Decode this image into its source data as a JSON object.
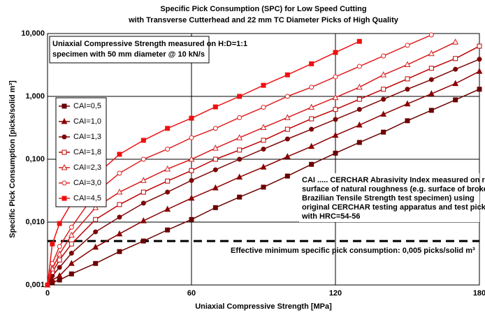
{
  "chart_data": {
    "type": "line",
    "title": "Specific Pick Consumption (SPC) for Low Speed Cutting",
    "subtitle": "with Transverse Cutterhead and 22 mm TC Diameter Picks of High Quality",
    "x_label": "Uniaxial Compressive Strength [MPa]",
    "y_label": "Specific Pick Consumption [picks/solid m³]",
    "y_scale": "log",
    "grid": true,
    "xlim": [
      0,
      180
    ],
    "xticks": [
      0,
      60,
      120,
      180
    ],
    "ylim": [
      0.001,
      10
    ],
    "yticks": [
      {
        "value": 0.001,
        "label": "0,001"
      },
      {
        "value": 0.01,
        "label": "0,010"
      },
      {
        "value": 0.1,
        "label": "0,100"
      },
      {
        "value": 1,
        "label": "1,000"
      },
      {
        "value": 10,
        "label": "10,000"
      }
    ],
    "x": [
      0,
      2,
      5,
      10,
      20,
      30,
      40,
      50,
      60,
      70,
      80,
      90,
      100,
      110,
      120,
      130,
      140,
      150,
      160,
      170,
      180
    ],
    "series": [
      {
        "name": "CAI=0,5",
        "color": "#6b0000",
        "marker": "square",
        "filled": true,
        "values": [
          0.001,
          0.0011,
          0.0012,
          0.0015,
          0.0022,
          0.0034,
          0.005,
          0.0075,
          0.011,
          0.017,
          0.025,
          0.036,
          0.054,
          0.083,
          0.125,
          0.185,
          0.27,
          0.41,
          0.6,
          0.88,
          1.3
        ]
      },
      {
        "name": "CAI=1,0",
        "color": "#8a0000",
        "marker": "triangle",
        "filled": true,
        "values": [
          0.001,
          0.0012,
          0.0014,
          0.0022,
          0.004,
          0.0065,
          0.0105,
          0.016,
          0.024,
          0.035,
          0.052,
          0.075,
          0.11,
          0.16,
          0.24,
          0.35,
          0.52,
          0.76,
          1.1,
          1.6,
          2.5
        ]
      },
      {
        "name": "CAI=1,3",
        "color": "#7d0606",
        "marker": "circle",
        "filled": true,
        "values": [
          0.001,
          0.0014,
          0.0019,
          0.0032,
          0.007,
          0.012,
          0.02,
          0.03,
          0.046,
          0.068,
          0.1,
          0.145,
          0.21,
          0.3,
          0.43,
          0.62,
          0.9,
          1.3,
          1.85,
          2.7,
          3.9
        ]
      },
      {
        "name": "CAI=1,8",
        "color": "#c00000",
        "marker": "square",
        "filled": false,
        "values": [
          0.001,
          0.0016,
          0.0025,
          0.0045,
          0.011,
          0.019,
          0.03,
          0.045,
          0.066,
          0.1,
          0.14,
          0.2,
          0.3,
          0.44,
          0.62,
          0.9,
          1.3,
          1.9,
          2.8,
          4.0,
          6.3
        ]
      },
      {
        "name": "CAI=2,3",
        "color": "#d81c1c",
        "marker": "triangle",
        "filled": false,
        "values": [
          0.001,
          0.0018,
          0.0031,
          0.0062,
          0.017,
          0.03,
          0.046,
          0.07,
          0.1,
          0.15,
          0.22,
          0.32,
          0.46,
          0.67,
          0.96,
          1.4,
          2.2,
          3.2,
          4.8,
          7.3,
          null
        ]
      },
      {
        "name": "CAI=3,0",
        "color": "#e02020",
        "marker": "circle",
        "filled": false,
        "values": [
          0.001,
          0.0022,
          0.0041,
          0.0083,
          0.029,
          0.06,
          0.1,
          0.145,
          0.22,
          0.31,
          0.46,
          0.67,
          1.0,
          1.4,
          2.05,
          3.0,
          4.4,
          6.5,
          9.5,
          null,
          null
        ]
      },
      {
        "name": "CAI=4,5",
        "color": "#ee1111",
        "marker": "square",
        "filled": true,
        "values": [
          0.001,
          0.0045,
          0.0095,
          0.02,
          0.055,
          0.12,
          0.2,
          0.31,
          0.45,
          0.68,
          1.0,
          1.5,
          2.2,
          3.3,
          5.0,
          7.5,
          null,
          null,
          null,
          null,
          null
        ]
      }
    ],
    "min_line": 0.005,
    "min_line_label": "Effective minimum specific pick consumption: 0,005 picks/solid m³",
    "note_top": [
      "Uniaxial Compressive Strength measured on H:D=1:1",
      "specimen with 50 mm diameter @ 10 kN/s"
    ],
    "note_cai": [
      "CAI ..... CERCHAR Abrasivity Index measured on rock",
      "surface of natural roughness (e.g. surface of broken",
      "Brazilian Tensile Strength test specimen) using",
      "original CERCHAR testing apparatus and test picks",
      "with HRC=54-56"
    ]
  }
}
